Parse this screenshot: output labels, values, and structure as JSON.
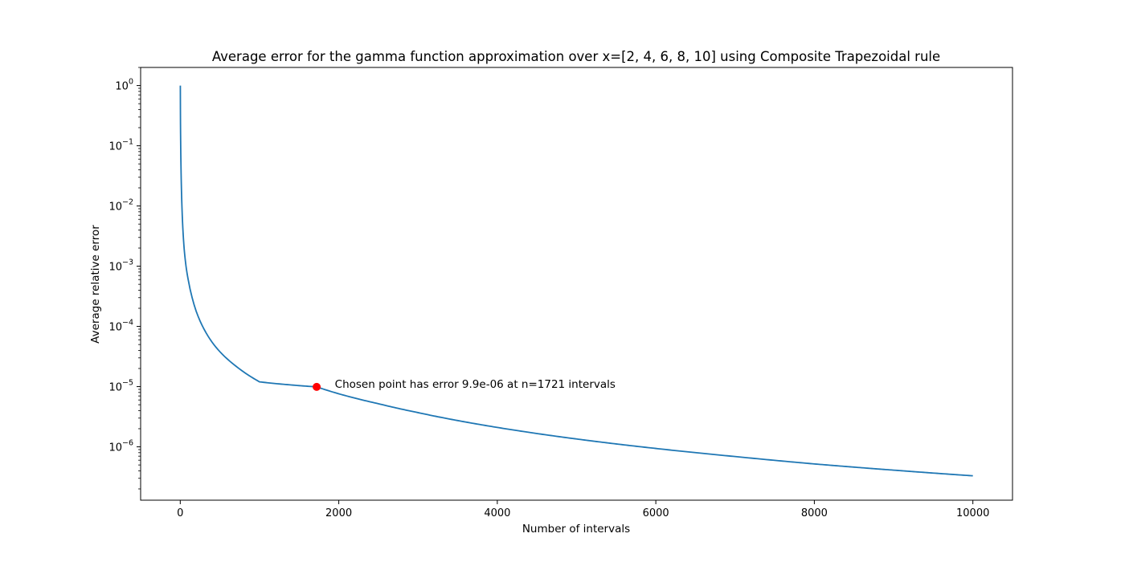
{
  "chart_data": {
    "type": "line",
    "title": "Average error for the gamma function approximation over x=[2, 4, 6, 8, 10] using Composite Trapezoidal rule",
    "xlabel": "Number of intervals",
    "ylabel": "Average relative error",
    "xlim": [
      -500,
      10500
    ],
    "ylim": [
      1.3e-07,
      2.0
    ],
    "yscale": "log",
    "grid": false,
    "x_ticks": [
      {
        "value": 0,
        "label": "0"
      },
      {
        "value": 2000,
        "label": "2000"
      },
      {
        "value": 4000,
        "label": "4000"
      },
      {
        "value": 6000,
        "label": "6000"
      },
      {
        "value": 8000,
        "label": "8000"
      },
      {
        "value": 10000,
        "label": "10000"
      }
    ],
    "y_ticks": [
      {
        "value": 1,
        "base": "10",
        "exp": "0"
      },
      {
        "value": 0.1,
        "base": "10",
        "exp": "−1"
      },
      {
        "value": 0.01,
        "base": "10",
        "exp": "−2"
      },
      {
        "value": 0.001,
        "base": "10",
        "exp": "−3"
      },
      {
        "value": 0.0001,
        "base": "10",
        "exp": "−4"
      },
      {
        "value": 1e-05,
        "base": "10",
        "exp": "−5"
      },
      {
        "value": 1e-06,
        "base": "10",
        "exp": "−6"
      }
    ],
    "series": [
      {
        "color": "#1f77b4",
        "points": [
          [
            1,
            1.0
          ],
          [
            5,
            0.12
          ],
          [
            10,
            0.04
          ],
          [
            20,
            0.011
          ],
          [
            30,
            0.005
          ],
          [
            50,
            0.0019
          ],
          [
            75,
            0.00095
          ],
          [
            100,
            0.0006
          ],
          [
            150,
            0.0003
          ],
          [
            200,
            0.00018
          ],
          [
            300,
            9e-05
          ],
          [
            400,
            5.5e-05
          ],
          [
            500,
            3.8e-05
          ],
          [
            700,
            2.2e-05
          ],
          [
            1000,
            1.2e-05
          ],
          [
            1300,
            1.55e-05
          ],
          [
            1721,
            9.9e-06
          ],
          [
            2000,
            7.6e-06
          ],
          [
            2500,
            5.2e-06
          ],
          [
            3000,
            3.7e-06
          ],
          [
            4000,
            2.1e-06
          ],
          [
            5000,
            1.35e-06
          ],
          [
            6000,
            9.4e-07
          ],
          [
            7000,
            6.9e-07
          ],
          [
            8000,
            5.2e-07
          ],
          [
            9000,
            4.1e-07
          ],
          [
            10000,
            3.3e-07
          ]
        ]
      }
    ],
    "highlight_point": {
      "x": 1721,
      "y": 9.9e-06,
      "color": "#ff0000"
    },
    "annotation": {
      "text": "Chosen point has error 9.9e-06 at n=1721 intervals",
      "x": 1950,
      "y": 9.9e-06
    }
  }
}
